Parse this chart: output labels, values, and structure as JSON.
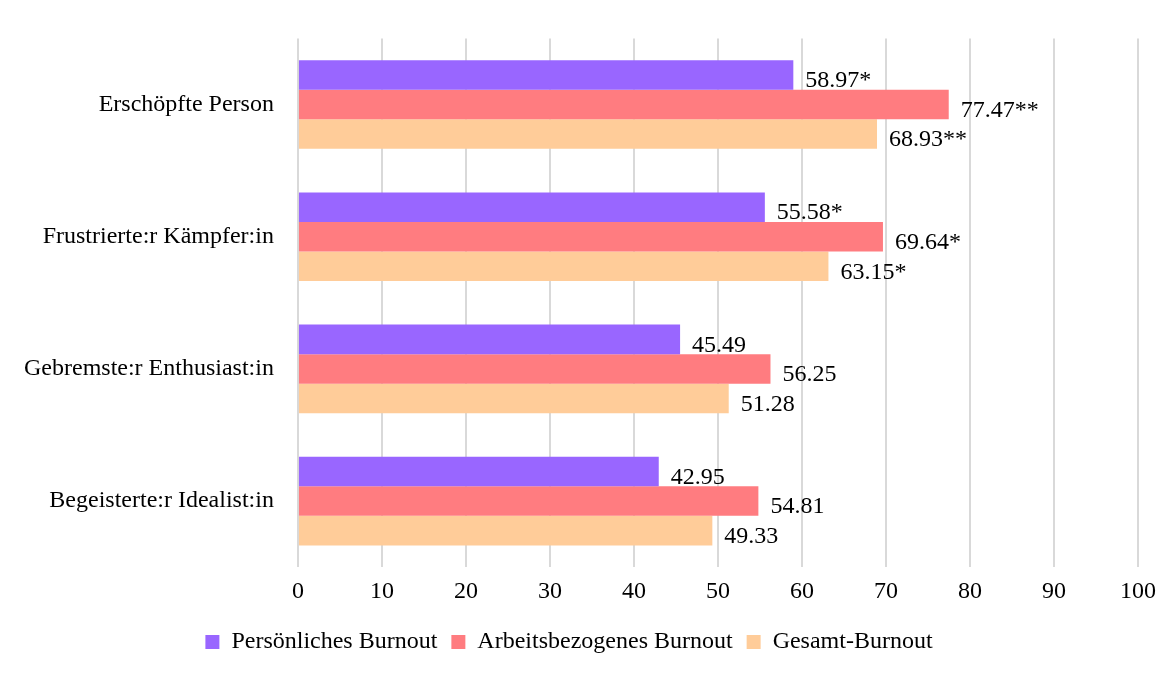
{
  "chart_data": {
    "type": "bar",
    "orientation": "horizontal",
    "categories": [
      "Erschöpfte Person",
      "Frustrierte:r Kämpfer:in",
      "Gebremste:r Enthusiast:in",
      "Begeisterte:r Idealist:in"
    ],
    "series": [
      {
        "name": "Persönliches Burnout",
        "color": "#9966ff",
        "values": [
          58.97,
          55.58,
          45.49,
          42.95
        ],
        "value_labels": [
          "58.97*",
          "55.58*",
          "45.49",
          "42.95"
        ]
      },
      {
        "name": "Arbeitsbezogenes Burnout",
        "color": "#ff7c80",
        "values": [
          77.47,
          69.64,
          56.25,
          54.81
        ],
        "value_labels": [
          "77.47**",
          "69.64*",
          "56.25",
          "54.81"
        ]
      },
      {
        "name": "Gesamt-Burnout",
        "color": "#ffcc99",
        "values": [
          68.93,
          63.15,
          51.28,
          49.33
        ],
        "value_labels": [
          "68.93**",
          "63.15*",
          "51.28",
          "49.33"
        ]
      }
    ],
    "xlim": [
      0,
      100
    ],
    "xticks": [
      0,
      10,
      20,
      30,
      40,
      50,
      60,
      70,
      80,
      90,
      100
    ],
    "grid": "x",
    "legend": "bottom"
  }
}
